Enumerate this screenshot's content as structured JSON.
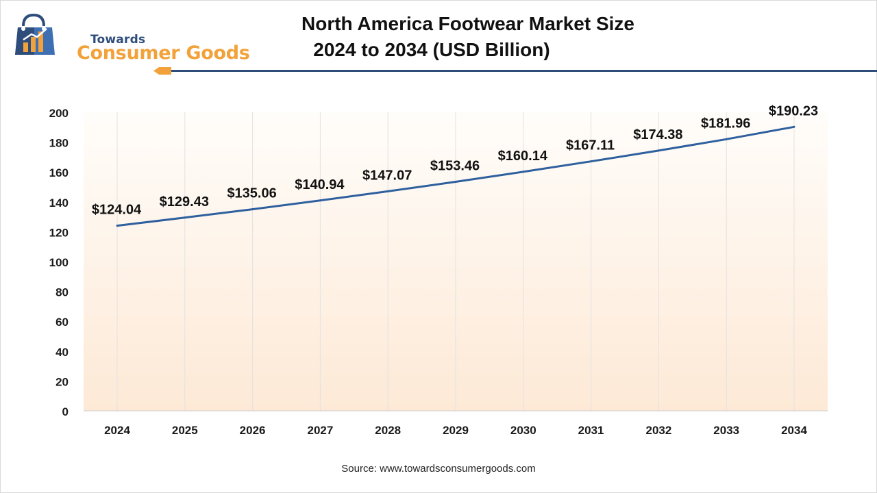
{
  "brand": {
    "name_top": "Towards",
    "name_main": "Consumer Goods",
    "colors": {
      "navy": "#2e4d7b",
      "orange": "#f2a23a",
      "blue": "#3f6fb3"
    }
  },
  "header": {
    "title_line1": "North America Footwear Market Size",
    "title_line2": "2024 to 2034 (USD Billion)"
  },
  "footer": {
    "source": "Source: www.towardsconsumergoods.com"
  },
  "chart_data": {
    "type": "line",
    "title": "North America Footwear Market Size 2024 to 2034 (USD Billion)",
    "xlabel": "",
    "ylabel": "",
    "categories": [
      "2024",
      "2025",
      "2026",
      "2027",
      "2028",
      "2029",
      "2030",
      "2031",
      "2032",
      "2033",
      "2034"
    ],
    "series": [
      {
        "values": [
          124.04,
          129.43,
          135.06,
          140.94,
          147.07,
          153.46,
          160.14,
          167.11,
          174.38,
          181.96,
          190.23
        ],
        "labels": [
          "$124.04",
          "$129.43",
          "$135.06",
          "$140.94",
          "$147.07",
          "$153.46",
          "$160.14",
          "$167.11",
          "$174.38",
          "$181.96",
          "$190.23"
        ],
        "color": "#2e5f9e"
      }
    ],
    "ylim": [
      0,
      200
    ],
    "yticks": [
      0,
      20,
      40,
      60,
      80,
      100,
      120,
      140,
      160,
      180,
      200
    ],
    "grid": "vertical",
    "legend": "none",
    "background_gradient": [
      "#fffdfa",
      "#fde9d6"
    ]
  }
}
